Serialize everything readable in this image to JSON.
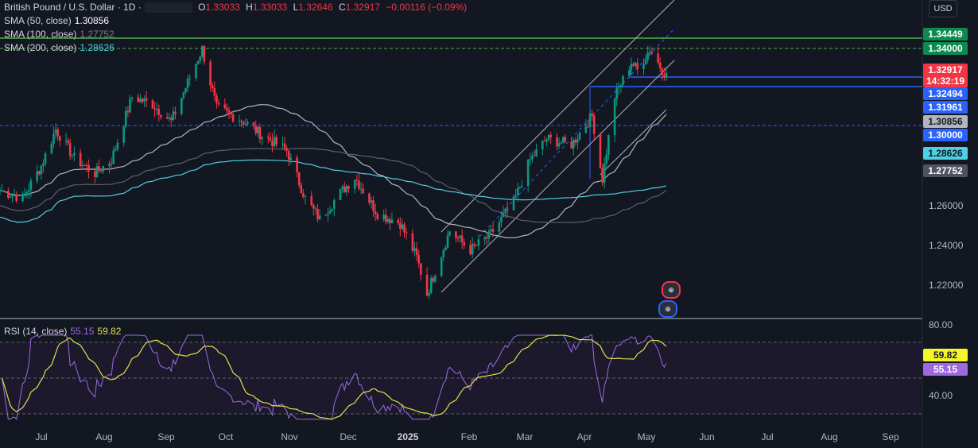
{
  "header": {
    "symbol": "British Pound / U.S. Dollar · 1D ·",
    "o_label": "O",
    "o": "1.33033",
    "h_label": "H",
    "h": "1.33033",
    "l_label": "L",
    "l": "1.32646",
    "c_label": "C",
    "c": "1.32917",
    "change": "−0.00116 (−0.09%)"
  },
  "indicators": {
    "sma50": {
      "label": "SMA (50, close)",
      "value": "1.30856",
      "color": "#ffffff"
    },
    "sma100": {
      "label": "SMA (100, close)",
      "value": "1.27752",
      "color": "#787b86"
    },
    "sma200": {
      "label": "SMA (200, close)",
      "value": "1.28626",
      "color": "#4dd0e1"
    },
    "rsi": {
      "label": "RSI (14, close)",
      "value": "55.15",
      "ma_value": "59.82",
      "color": "#9c6ade",
      "ma_color": "#e0e04a"
    }
  },
  "currency": "USD",
  "price_labels": [
    {
      "text": "1.34449",
      "bg": "#0d8a4f",
      "fg": "#ffffff"
    },
    {
      "text": "1.34000",
      "bg": "#0d8a4f",
      "fg": "#ffffff"
    },
    {
      "text": "1.32917",
      "bg": "#f23645",
      "fg": "#ffffff"
    },
    {
      "text": "14:32:19",
      "bg": "#f23645",
      "fg": "#ffffff"
    },
    {
      "text": "1.32494",
      "bg": "#2962ff",
      "fg": "#ffffff"
    },
    {
      "text": "1.31961",
      "bg": "#2962ff",
      "fg": "#ffffff"
    },
    {
      "text": "1.30856",
      "bg": "#b2b5be",
      "fg": "#131722"
    },
    {
      "text": "1.30000",
      "bg": "#2962ff",
      "fg": "#ffffff"
    },
    {
      "text": "1.28626",
      "bg": "#4dd0e1",
      "fg": "#131722"
    },
    {
      "text": "1.27752",
      "bg": "#50535e",
      "fg": "#ffffff"
    }
  ],
  "rsi_labels": [
    {
      "text": "59.82",
      "bg": "#f5f52a",
      "fg": "#131722"
    },
    {
      "text": "55.15",
      "bg": "#9c6ade",
      "fg": "#ffffff"
    }
  ],
  "chart_data": {
    "type": "candlestick",
    "title": "British Pound / U.S. Dollar · 1D",
    "ylim": [
      1.2,
      1.35
    ],
    "y_ticks": [
      "1.26000",
      "1.24000",
      "1.22000"
    ],
    "x_ticks": [
      "Jul",
      "Aug",
      "Sep",
      "Oct",
      "Nov",
      "Dec",
      "2025",
      "Feb",
      "Mar",
      "Apr",
      "May",
      "Jun",
      "Jul",
      "Aug",
      "Sep"
    ],
    "close_series": [
      {
        "date": "2024-06-20",
        "close": 1.269
      },
      {
        "date": "2024-07-01",
        "close": 1.265
      },
      {
        "date": "2024-07-10",
        "close": 1.282
      },
      {
        "date": "2024-07-17",
        "close": 1.301
      },
      {
        "date": "2024-07-26",
        "close": 1.286
      },
      {
        "date": "2024-08-05",
        "close": 1.278
      },
      {
        "date": "2024-08-13",
        "close": 1.285
      },
      {
        "date": "2024-08-23",
        "close": 1.318
      },
      {
        "date": "2024-09-02",
        "close": 1.314
      },
      {
        "date": "2024-09-11",
        "close": 1.305
      },
      {
        "date": "2024-09-20",
        "close": 1.328
      },
      {
        "date": "2024-09-26",
        "close": 1.343
      },
      {
        "date": "2024-10-03",
        "close": 1.312
      },
      {
        "date": "2024-10-15",
        "close": 1.306
      },
      {
        "date": "2024-10-25",
        "close": 1.298
      },
      {
        "date": "2024-11-06",
        "close": 1.29
      },
      {
        "date": "2024-11-15",
        "close": 1.265
      },
      {
        "date": "2024-11-22",
        "close": 1.254
      },
      {
        "date": "2024-12-02",
        "close": 1.268
      },
      {
        "date": "2024-12-09",
        "close": 1.276
      },
      {
        "date": "2024-12-20",
        "close": 1.257
      },
      {
        "date": "2024-12-31",
        "close": 1.252
      },
      {
        "date": "2025-01-08",
        "close": 1.234
      },
      {
        "date": "2025-01-13",
        "close": 1.215
      },
      {
        "date": "2025-01-24",
        "close": 1.248
      },
      {
        "date": "2025-02-03",
        "close": 1.238
      },
      {
        "date": "2025-02-12",
        "close": 1.245
      },
      {
        "date": "2025-02-24",
        "close": 1.263
      },
      {
        "date": "2025-03-04",
        "close": 1.285
      },
      {
        "date": "2025-03-12",
        "close": 1.296
      },
      {
        "date": "2025-03-24",
        "close": 1.293
      },
      {
        "date": "2025-04-03",
        "close": 1.308
      },
      {
        "date": "2025-04-08",
        "close": 1.275
      },
      {
        "date": "2025-04-14",
        "close": 1.318
      },
      {
        "date": "2025-04-22",
        "close": 1.336
      },
      {
        "date": "2025-04-25",
        "close": 1.332
      },
      {
        "date": "2025-05-01",
        "close": 1.343
      },
      {
        "date": "2025-05-06",
        "close": 1.334
      },
      {
        "date": "2025-05-09",
        "close": 1.329
      }
    ],
    "sma": [
      {
        "name": "SMA (50, close)",
        "last": 1.30856
      },
      {
        "name": "SMA (100, close)",
        "last": 1.27752
      },
      {
        "name": "SMA (200, close)",
        "last": 1.28626
      }
    ],
    "horizontal_levels": [
      1.34449,
      1.34,
      1.32494,
      1.31961,
      1.3
    ],
    "rsi": {
      "name": "RSI (14, close)",
      "last": 55.15,
      "ma_last": 59.82,
      "levels": [
        70,
        30
      ],
      "ticks": [
        "80.00",
        "40.00"
      ]
    }
  }
}
